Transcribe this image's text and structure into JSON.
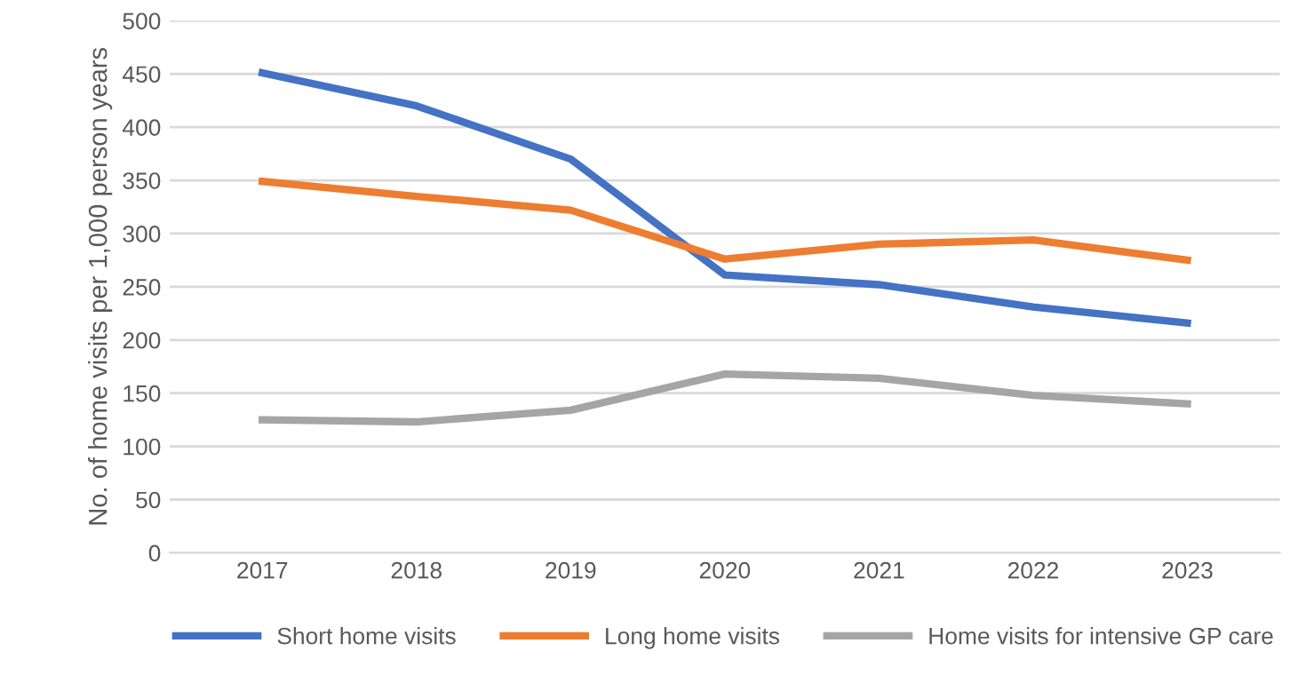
{
  "chart_data": {
    "type": "line",
    "ylabel": "No. of home visits per 1,000 person years",
    "categories": [
      "2017",
      "2018",
      "2019",
      "2020",
      "2021",
      "2022",
      "2023"
    ],
    "series": [
      {
        "name": "Short home visits",
        "color": "#4472c4",
        "values": [
          451,
          420,
          370,
          261,
          252,
          231,
          216
        ]
      },
      {
        "name": "Long home visits",
        "color": "#ed7d31",
        "values": [
          349,
          335,
          322,
          276,
          290,
          294,
          275
        ]
      },
      {
        "name": "Home visits for intensive GP care",
        "color": "#a5a5a5",
        "values": [
          125,
          123,
          134,
          168,
          164,
          148,
          140
        ]
      }
    ],
    "ylim": [
      0,
      500
    ],
    "yticks": [
      0,
      50,
      100,
      150,
      200,
      250,
      300,
      350,
      400,
      450,
      500
    ],
    "grid": "y",
    "legend": "bottom",
    "marker": "none",
    "line_style": "solid"
  }
}
